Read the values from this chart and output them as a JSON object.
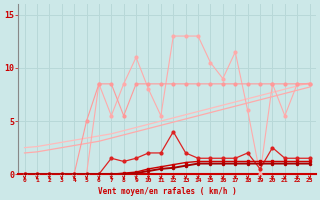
{
  "x": [
    0,
    1,
    2,
    3,
    4,
    5,
    6,
    7,
    8,
    9,
    10,
    11,
    12,
    13,
    14,
    15,
    16,
    17,
    18,
    19,
    20,
    21,
    22,
    23
  ],
  "line_pink_high": [
    0,
    0,
    0,
    0,
    0,
    0,
    8.5,
    5.5,
    8.5,
    11.0,
    8.0,
    5.5,
    13.0,
    13.0,
    13.0,
    10.5,
    9.0,
    11.5,
    6.0,
    0,
    8.5,
    5.5,
    8.5,
    8.5
  ],
  "line_med_red": [
    0,
    0,
    0,
    0,
    0,
    5.0,
    8.5,
    8.5,
    5.5,
    8.5,
    8.5,
    8.5,
    8.5,
    8.5,
    8.5,
    8.5,
    8.5,
    8.5,
    8.5,
    8.5,
    8.5,
    8.5,
    8.5,
    8.5
  ],
  "line_trend_light": [
    2.0,
    2.1,
    2.3,
    2.5,
    2.7,
    2.9,
    3.1,
    3.4,
    3.7,
    4.0,
    4.3,
    4.6,
    4.9,
    5.2,
    5.5,
    5.8,
    6.1,
    6.4,
    6.7,
    7.0,
    7.3,
    7.6,
    7.9,
    8.2
  ],
  "line_trend_pale": [
    2.5,
    2.6,
    2.8,
    3.0,
    3.2,
    3.4,
    3.6,
    3.8,
    4.1,
    4.4,
    4.7,
    5.0,
    5.3,
    5.6,
    5.9,
    6.2,
    6.5,
    6.8,
    7.1,
    7.4,
    7.7,
    8.0,
    8.3,
    8.6
  ],
  "line_dark_jagged": [
    0,
    0,
    0,
    0,
    0,
    0,
    0,
    1.5,
    1.2,
    1.5,
    2.0,
    2.0,
    4.0,
    2.0,
    1.5,
    1.5,
    1.5,
    1.5,
    2.0,
    0.5,
    2.5,
    1.5,
    1.5,
    1.5
  ],
  "line_dark_flat": [
    0,
    0,
    0,
    0,
    0,
    0,
    0,
    0,
    0.1,
    0.2,
    0.5,
    0.7,
    0.9,
    1.1,
    1.2,
    1.2,
    1.2,
    1.2,
    1.2,
    1.2,
    1.2,
    1.2,
    1.2,
    1.2
  ],
  "line_darkest": [
    0,
    0,
    0,
    0,
    0,
    0,
    0,
    0,
    0.0,
    0.1,
    0.3,
    0.5,
    0.6,
    0.8,
    1.0,
    1.0,
    1.0,
    1.0,
    1.0,
    1.0,
    1.0,
    1.0,
    1.0,
    1.0
  ],
  "bg_color": "#cce8e8",
  "grid_color": "#aacccc",
  "line_pink_color": "#ffaaaa",
  "line_med_color": "#ffaaaa",
  "line_trend1_color": "#ff9999",
  "line_trend2_color": "#ffbbbb",
  "line_dark1_color": "#cc0000",
  "line_dark2_color": "#cc0000",
  "line_dark3_color": "#cc0000",
  "arrow_color": "#cc0000",
  "tick_color": "#cc0000",
  "xlabel": "Vent moyen/en rafales ( km/h )",
  "ylabel_ticks": [
    0,
    5,
    10,
    15
  ],
  "ylim": [
    0,
    16
  ],
  "xlim": [
    -0.5,
    23.5
  ]
}
